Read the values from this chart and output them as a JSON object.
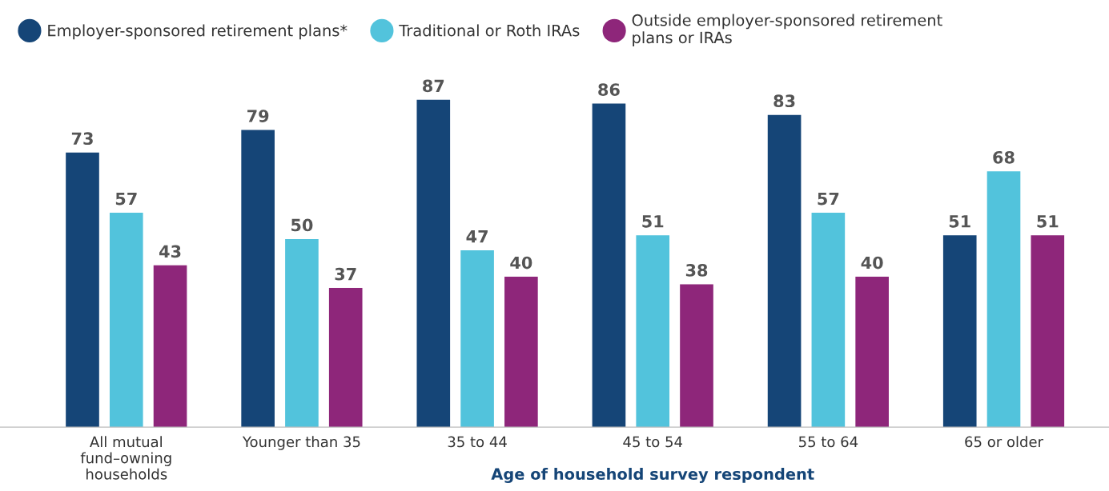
{
  "chart_data": {
    "type": "bar",
    "xlabel": "Age of household survey respondent",
    "categories": [
      "All mutual\nfund–owning\nhouseholds",
      "Younger than 35",
      "35 to 44",
      "45 to 54",
      "55 to 64",
      "65 or older"
    ],
    "series": [
      {
        "name": "Employer-sponsored retirement plans*",
        "color": "#154577",
        "values": [
          73,
          79,
          87,
          86,
          83,
          51
        ]
      },
      {
        "name": "Traditional or Roth IRAs",
        "color": "#52c3dc",
        "values": [
          57,
          50,
          47,
          51,
          57,
          68
        ]
      },
      {
        "name": "Outside employer-sponsored retirement\nplans or IRAs",
        "color": "#8e267a",
        "values": [
          43,
          37,
          40,
          38,
          40,
          51
        ]
      }
    ],
    "data_labels": true,
    "legend": "top left",
    "grid": false
  }
}
